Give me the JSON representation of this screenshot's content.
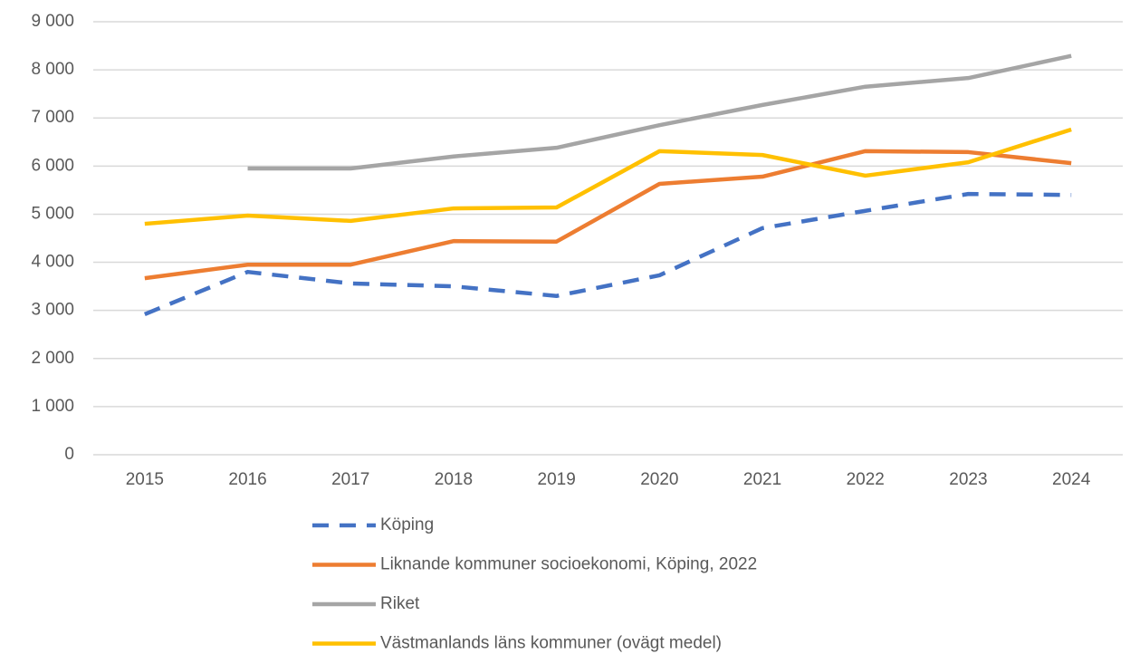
{
  "chart_data": {
    "type": "line",
    "categories": [
      "2015",
      "2016",
      "2017",
      "2018",
      "2019",
      "2020",
      "2021",
      "2022",
      "2023",
      "2024"
    ],
    "series": [
      {
        "name": "Köping",
        "color": "#4472c4",
        "dashed": true,
        "values": [
          2920,
          3800,
          3560,
          3500,
          3300,
          3730,
          4710,
          5070,
          5420,
          5400
        ]
      },
      {
        "name": "Liknande kommuner socioekonomi, Köping, 2022",
        "color": "#ed7d31",
        "values": [
          3670,
          3950,
          3950,
          4440,
          4430,
          5630,
          5780,
          6310,
          6290,
          6060
        ]
      },
      {
        "name": "Riket",
        "color": "#a5a5a5",
        "values": [
          null,
          5950,
          5950,
          6200,
          6380,
          6850,
          7270,
          7650,
          7830,
          8290
        ]
      },
      {
        "name": "Västmanlands läns kommuner (ovägt medel)",
        "color": "#ffc000",
        "values": [
          4800,
          4970,
          4860,
          5120,
          5140,
          6310,
          6230,
          5800,
          6080,
          6760
        ]
      }
    ],
    "ylim": [
      0,
      9000
    ],
    "yticks": [
      0,
      {
        "value": 1000,
        "label": "1 000"
      },
      {
        "value": 2000,
        "label": "2 000"
      },
      {
        "value": 3000,
        "label": "3 000"
      },
      {
        "value": 4000,
        "label": "4 000"
      },
      {
        "value": 5000,
        "label": "5 000"
      },
      {
        "value": 6000,
        "label": "6 000"
      },
      {
        "value": 7000,
        "label": "7 000"
      },
      {
        "value": 8000,
        "label": "8 000"
      },
      {
        "value": 9000,
        "label": "9 000"
      }
    ],
    "grid": true,
    "legend": "bottom"
  }
}
